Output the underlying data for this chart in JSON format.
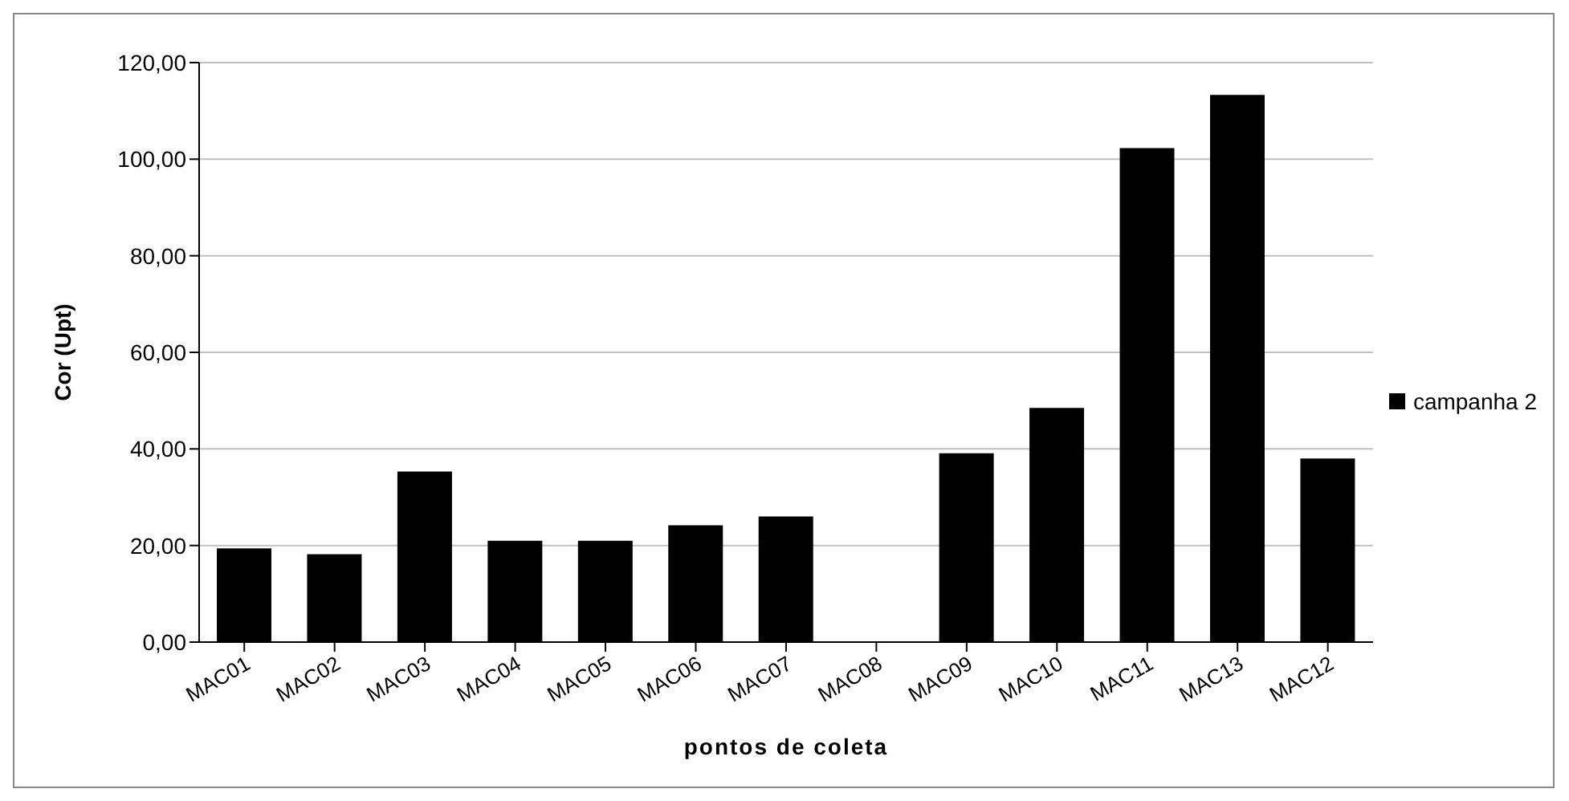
{
  "chart_data": {
    "type": "bar",
    "xlabel": "pontos de coleta",
    "ylabel": "Cor (Upt)",
    "categories": [
      "MAC01",
      "MAC02",
      "MAC03",
      "MAC04",
      "MAC05",
      "MAC06",
      "MAC07",
      "MAC08",
      "MAC09",
      "MAC10",
      "MAC11",
      "MAC13",
      "MAC12"
    ],
    "series": [
      {
        "name": "campanha 2",
        "color": "#000000",
        "values": [
          19.4,
          18.2,
          35.3,
          21.0,
          21.0,
          24.2,
          26.0,
          0,
          39.1,
          48.5,
          102.3,
          113.3,
          38.0
        ]
      }
    ],
    "ylim": [
      0,
      120
    ],
    "yticks": [
      {
        "value": 0,
        "label": "0,00"
      },
      {
        "value": 20,
        "label": "20,00"
      },
      {
        "value": 40,
        "label": "40,00"
      },
      {
        "value": 60,
        "label": "60,00"
      },
      {
        "value": 80,
        "label": "80,00"
      },
      {
        "value": 100,
        "label": "100,00"
      },
      {
        "value": 120,
        "label": "120,00"
      }
    ],
    "grid": "y",
    "legend": "right"
  }
}
